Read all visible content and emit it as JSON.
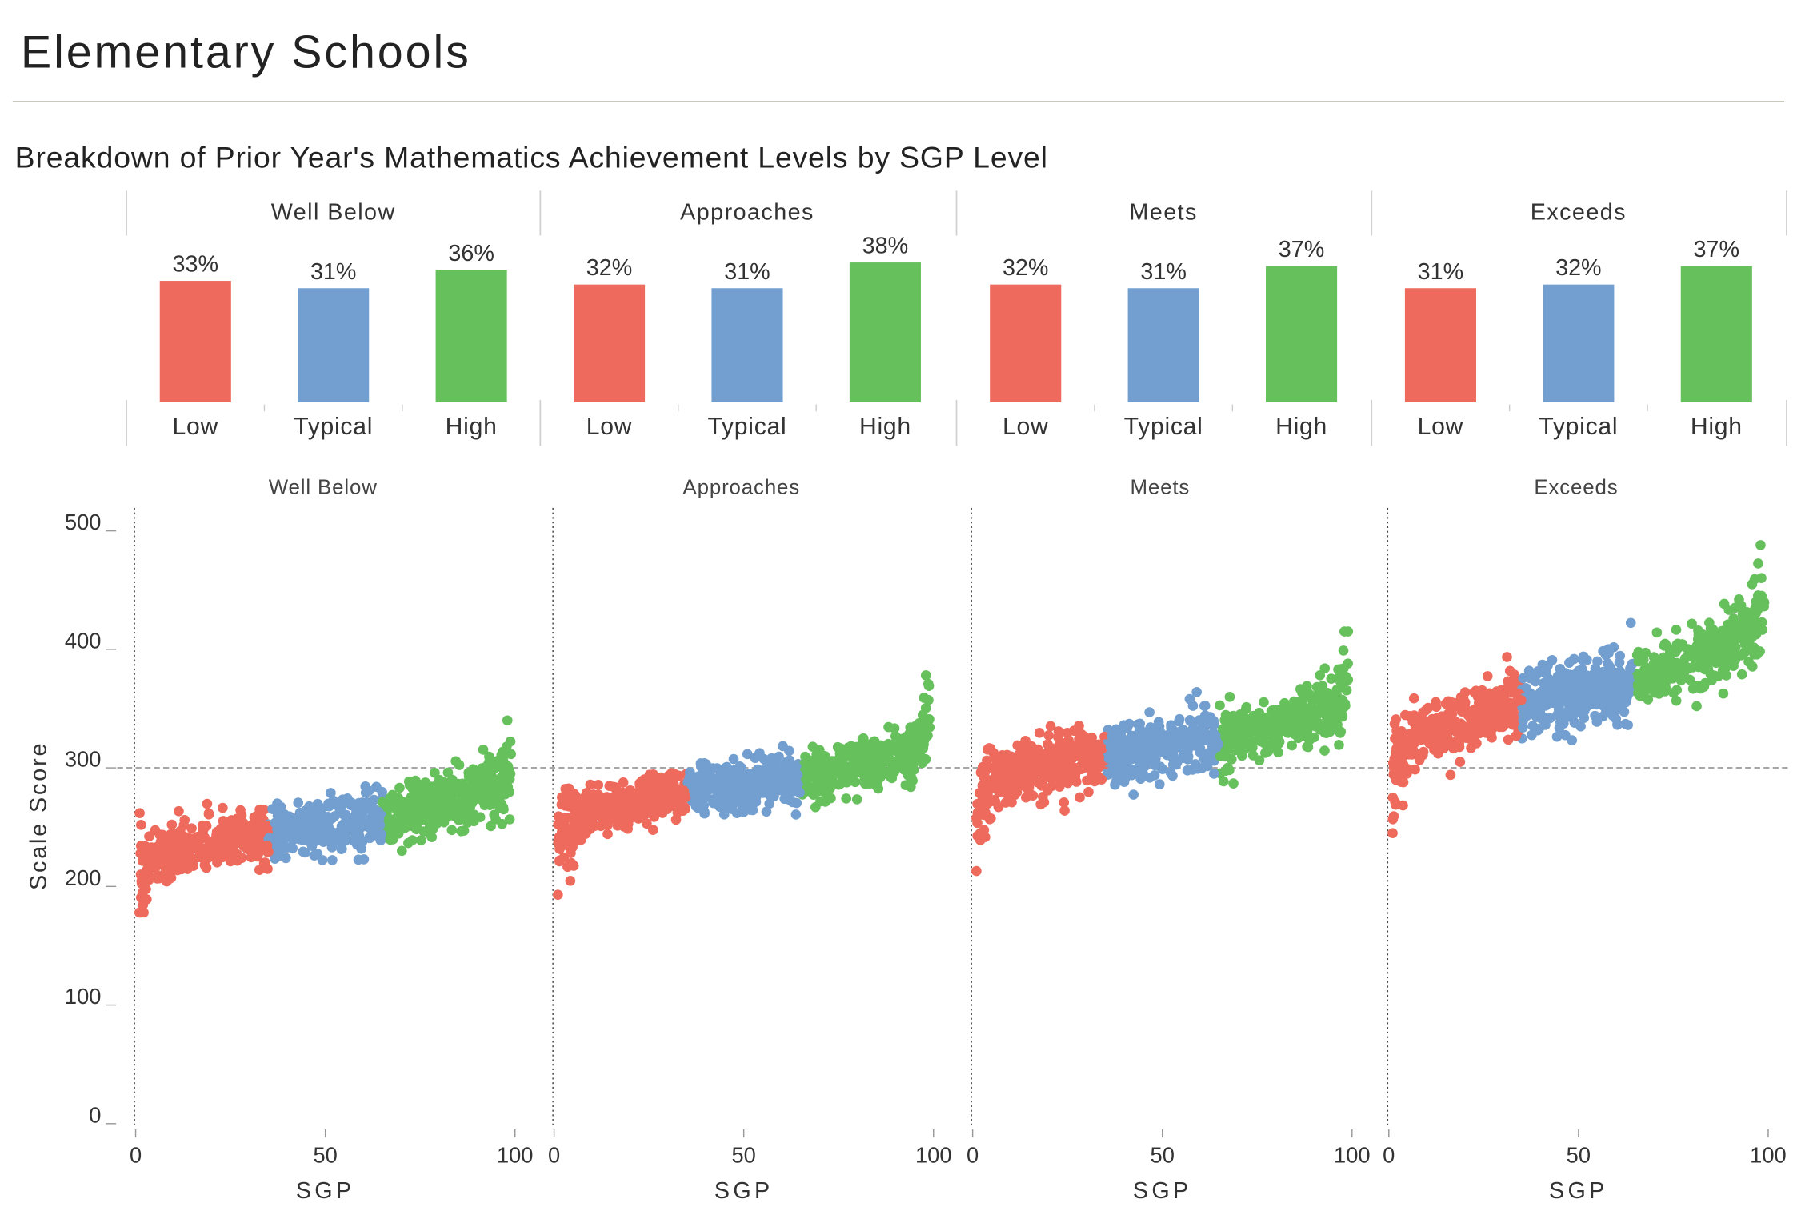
{
  "page": {
    "title": "Elementary Schools",
    "subtitle": "Breakdown of Prior Year's Mathematics Achievement Levels by SGP Level"
  },
  "colors": {
    "low": "#ee6a5c",
    "typical": "#729fcf",
    "high": "#66c05c",
    "rule": "#a3a391",
    "axis": "#999999"
  },
  "chart_data": [
    {
      "type": "bar",
      "title": "Breakdown of Prior Year's Mathematics Achievement Levels by SGP Level",
      "panels": [
        "Well Below",
        "Approaches",
        "Meets",
        "Exceeds"
      ],
      "categories": [
        "Low",
        "Typical",
        "High"
      ],
      "series": [
        {
          "panel": "Well Below",
          "values": [
            33,
            31,
            36
          ],
          "labels": [
            "33%",
            "31%",
            "36%"
          ]
        },
        {
          "panel": "Approaches",
          "values": [
            32,
            31,
            38
          ],
          "labels": [
            "32%",
            "31%",
            "38%"
          ]
        },
        {
          "panel": "Meets",
          "values": [
            32,
            31,
            37
          ],
          "labels": [
            "32%",
            "31%",
            "37%"
          ]
        },
        {
          "panel": "Exceeds",
          "values": [
            31,
            32,
            37
          ],
          "labels": [
            "31%",
            "32%",
            "37%"
          ]
        }
      ],
      "unit": "%",
      "grid": false
    },
    {
      "type": "scatter",
      "panels": [
        "Well Below",
        "Approaches",
        "Meets",
        "Exceeds"
      ],
      "xlabel": "SGP",
      "ylabel": "Scale Score",
      "xlim": [
        0,
        100
      ],
      "ylim": [
        0,
        500
      ],
      "xticks": [
        0,
        50,
        100
      ],
      "yticks": [
        0,
        100,
        200,
        300,
        400,
        500
      ],
      "reference_line_y": 300,
      "legend": "none",
      "groups": [
        "Low",
        "Typical",
        "High"
      ],
      "group_sgp_ranges": [
        [
          1,
          35
        ],
        [
          35,
          65
        ],
        [
          65,
          99
        ]
      ],
      "trend": [
        {
          "panel": "Well Below",
          "sgp": [
            1,
            2,
            5,
            10,
            20,
            30,
            35,
            50,
            65,
            75,
            85,
            95,
            99
          ],
          "median": [
            205,
            215,
            222,
            228,
            235,
            240,
            242,
            250,
            258,
            266,
            275,
            287,
            300
          ],
          "spread": 15,
          "min": 178,
          "max": 340
        },
        {
          "panel": "Approaches",
          "sgp": [
            1,
            2,
            5,
            10,
            20,
            30,
            35,
            50,
            65,
            75,
            85,
            95,
            99
          ],
          "median": [
            240,
            250,
            257,
            262,
            270,
            276,
            279,
            285,
            292,
            298,
            304,
            314,
            332
          ],
          "spread": 14,
          "min": 193,
          "max": 378
        },
        {
          "panel": "Meets",
          "sgp": [
            1,
            2,
            5,
            10,
            20,
            30,
            35,
            50,
            65,
            75,
            85,
            95,
            99
          ],
          "median": [
            268,
            278,
            288,
            295,
            302,
            308,
            310,
            317,
            324,
            331,
            340,
            352,
            370
          ],
          "spread": 16,
          "min": 213,
          "max": 415
        },
        {
          "panel": "Exceeds",
          "sgp": [
            1,
            2,
            5,
            10,
            20,
            30,
            35,
            50,
            65,
            75,
            85,
            95,
            99
          ],
          "median": [
            285,
            308,
            320,
            330,
            340,
            348,
            352,
            362,
            372,
            385,
            398,
            418,
            435
          ],
          "spread": 18,
          "min": 245,
          "max": 488
        }
      ]
    }
  ]
}
